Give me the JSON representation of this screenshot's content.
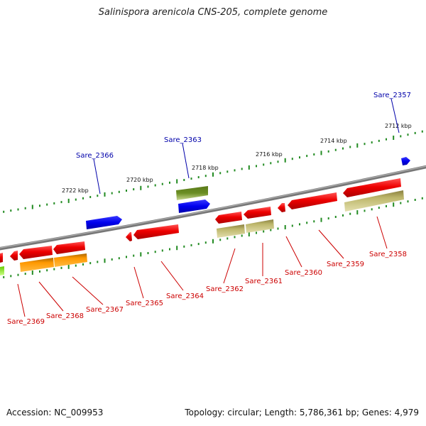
{
  "header": {
    "title": "Salinispora arenicola CNS-205, complete genome"
  },
  "footer": {
    "accession": "Accession: NC_009953",
    "summary": "Topology: circular; Length: 5,786,361 bp; Genes: 4,979"
  },
  "ruler": {
    "labels": [
      "2722 kbp",
      "2720 kbp",
      "2718 kbp",
      "2716 kbp",
      "2714 kbp",
      "2712 kbp"
    ]
  },
  "genes_top": [
    {
      "label": "Sare_2366",
      "color": "#0000aa"
    },
    {
      "label": "Sare_2363",
      "color": "#0000aa"
    },
    {
      "label": "Sare_2357",
      "color": "#0000aa"
    }
  ],
  "genes_bottom": [
    {
      "label": "Sare_2369",
      "color": "#cc0000"
    },
    {
      "label": "Sare_2368",
      "color": "#cc0000"
    },
    {
      "label": "Sare_2367",
      "color": "#cc0000"
    },
    {
      "label": "Sare_2365",
      "color": "#cc0000"
    },
    {
      "label": "Sare_2364",
      "color": "#cc0000"
    },
    {
      "label": "Sare_2362",
      "color": "#cc0000"
    },
    {
      "label": "Sare_2361",
      "color": "#cc0000"
    },
    {
      "label": "Sare_2360",
      "color": "#cc0000"
    },
    {
      "label": "Sare_2359",
      "color": "#cc0000"
    },
    {
      "label": "Sare_2358",
      "color": "#cc0000"
    }
  ],
  "colors": {
    "backbone": "#808080",
    "forward_cds": "#0000ff",
    "reverse_cds": "#ff0000",
    "rna_olive": "#6b8e23",
    "reverse_orange": "#ff9900",
    "khaki": "#bdb76b",
    "lime": "#99ff33",
    "ruler_tick": "#228b22"
  }
}
